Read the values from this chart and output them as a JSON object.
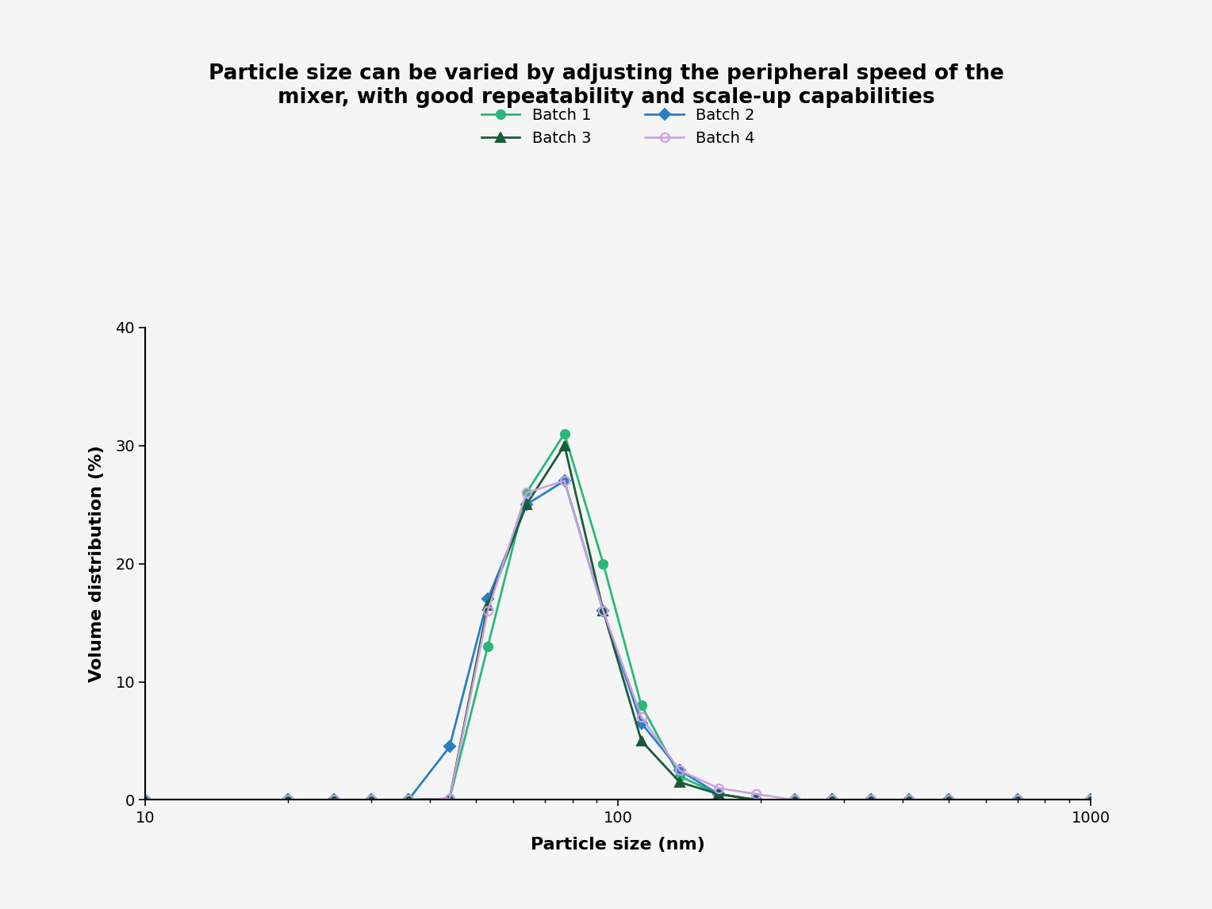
{
  "title": "Particle size can be varied by adjusting the peripheral speed of the\nmixer, with good repeatability and scale-up capabilities",
  "xlabel": "Particle size (nm)",
  "ylabel": "Volume distribution (%)",
  "background_color": "#f5f5f5",
  "plot_bg_color": "#f5f5f5",
  "xlim": [
    10,
    1000
  ],
  "ylim": [
    0,
    40
  ],
  "yticks": [
    0,
    10,
    20,
    30,
    40
  ],
  "xticks": [
    10,
    100,
    1000
  ],
  "batches": {
    "Batch 1": {
      "color": "#2ab87a",
      "marker": "o",
      "markersize": 8,
      "linewidth": 2.0,
      "fillstyle": "full",
      "x": [
        10,
        20,
        25,
        30,
        36,
        44,
        53,
        64,
        77,
        93,
        112,
        135,
        163,
        196,
        236,
        284,
        342,
        412,
        500,
        700,
        1000
      ],
      "y": [
        0,
        0,
        0,
        0,
        0,
        0.1,
        13,
        26,
        31,
        20,
        8,
        2,
        0.5,
        0,
        0,
        0,
        0,
        0,
        0,
        0,
        0
      ]
    },
    "Batch 2": {
      "color": "#2a7fc4",
      "marker": "D",
      "markersize": 7,
      "linewidth": 2.0,
      "fillstyle": "full",
      "x": [
        10,
        20,
        25,
        30,
        36,
        44,
        53,
        64,
        77,
        93,
        112,
        135,
        163,
        196,
        236,
        284,
        342,
        412,
        500,
        700,
        1000
      ],
      "y": [
        0,
        0,
        0,
        0,
        0,
        4.5,
        17,
        25,
        27,
        16,
        6.5,
        2.5,
        0.5,
        0,
        0,
        0,
        0,
        0,
        0,
        0,
        0
      ]
    },
    "Batch 3": {
      "color": "#1a5c3a",
      "marker": "^",
      "markersize": 8,
      "linewidth": 2.0,
      "fillstyle": "full",
      "x": [
        10,
        20,
        25,
        30,
        36,
        44,
        53,
        64,
        77,
        93,
        112,
        135,
        163,
        196,
        236,
        284,
        342,
        412,
        500,
        700,
        1000
      ],
      "y": [
        0,
        0,
        0,
        0,
        0,
        0.1,
        16.5,
        25,
        30,
        16,
        5,
        1.5,
        0.5,
        0,
        0,
        0,
        0,
        0,
        0,
        0,
        0
      ]
    },
    "Batch 4": {
      "color": "#c9a0dc",
      "marker": "o",
      "markersize": 8,
      "linewidth": 1.8,
      "fillstyle": "none",
      "x": [
        10,
        20,
        25,
        30,
        36,
        44,
        53,
        64,
        77,
        93,
        112,
        135,
        163,
        196,
        236,
        284,
        342,
        412,
        500,
        700,
        1000
      ],
      "y": [
        0,
        0,
        0,
        0,
        0,
        0.1,
        16,
        26,
        27,
        16,
        7,
        2.5,
        1,
        0.5,
        0,
        0,
        0,
        0,
        0,
        0,
        0
      ]
    }
  },
  "legend_fontsize": 14,
  "title_fontsize": 19,
  "axis_label_fontsize": 16,
  "tick_fontsize": 14
}
